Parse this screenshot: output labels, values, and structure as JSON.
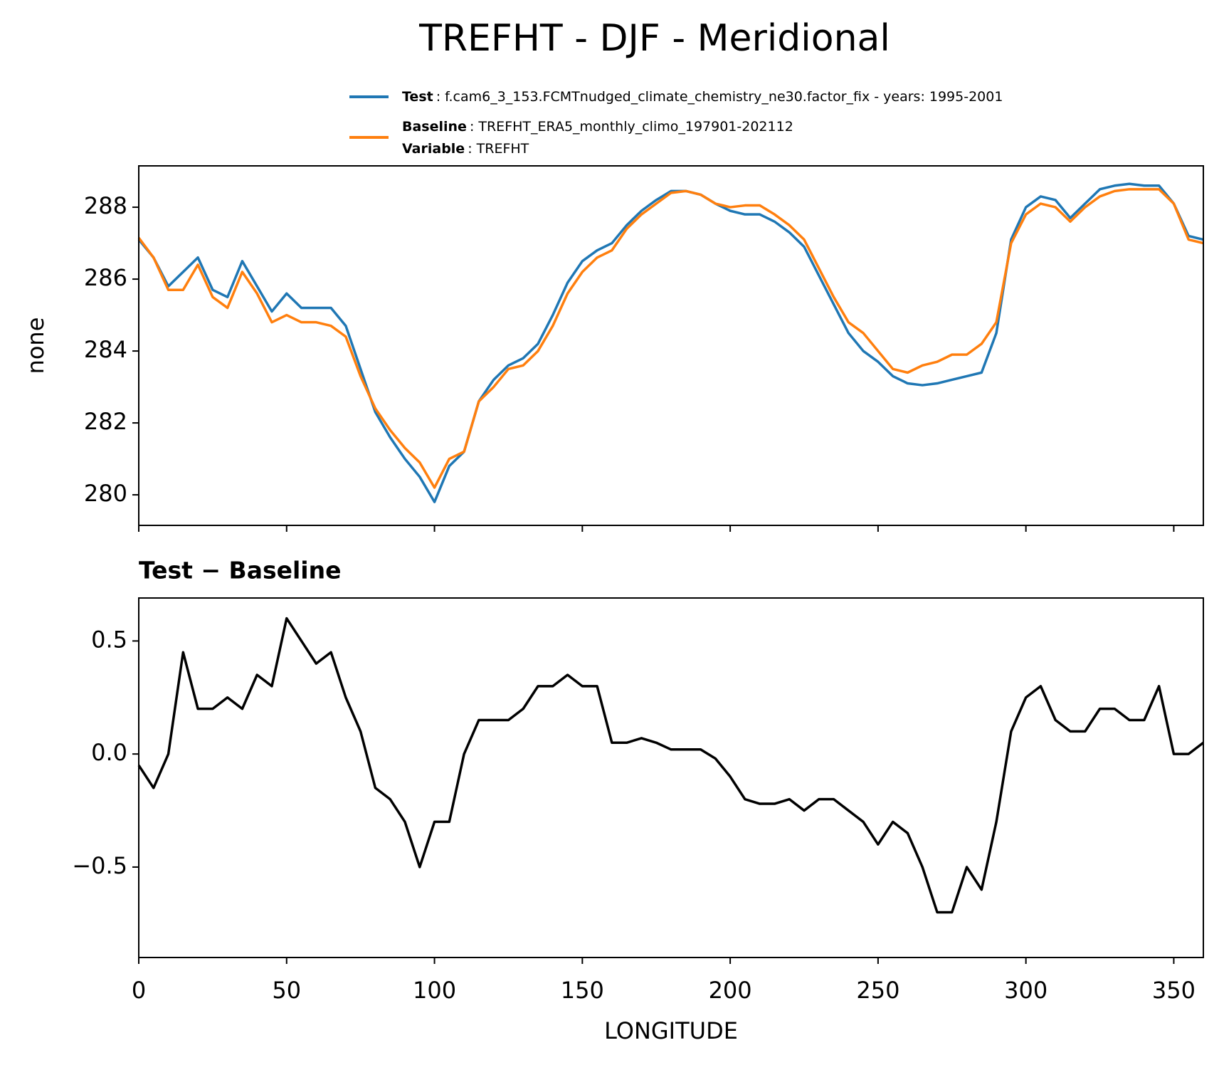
{
  "title": "TREFHT - DJF - Meridional",
  "chart_data": [
    {
      "type": "line",
      "ylabel": "none",
      "x": [
        0,
        5,
        10,
        15,
        20,
        25,
        30,
        35,
        40,
        45,
        50,
        55,
        60,
        65,
        70,
        75,
        80,
        85,
        90,
        95,
        100,
        105,
        110,
        115,
        120,
        125,
        130,
        135,
        140,
        145,
        150,
        155,
        160,
        165,
        170,
        175,
        180,
        185,
        190,
        195,
        200,
        205,
        210,
        215,
        220,
        225,
        230,
        235,
        240,
        245,
        250,
        255,
        260,
        265,
        270,
        275,
        280,
        285,
        290,
        295,
        300,
        305,
        310,
        315,
        320,
        325,
        330,
        335,
        340,
        345,
        350,
        355,
        360
      ],
      "series": [
        {
          "name": "Test",
          "description": ": f.cam6_3_153.FCMTnudged_climate_chemistry_ne30.factor_fix - years: 1995-2001",
          "color": "#1f77b4",
          "values": [
            287.1,
            286.6,
            285.8,
            286.2,
            286.6,
            285.7,
            285.5,
            286.5,
            285.8,
            285.1,
            285.6,
            285.2,
            285.2,
            285.2,
            284.7,
            283.5,
            282.3,
            281.6,
            281.0,
            280.5,
            279.8,
            280.8,
            281.2,
            282.6,
            283.2,
            283.6,
            283.8,
            284.2,
            285.0,
            285.9,
            286.5,
            286.8,
            287.0,
            287.5,
            287.9,
            288.2,
            288.45,
            288.45,
            288.35,
            288.1,
            287.9,
            287.8,
            287.8,
            287.6,
            287.3,
            286.9,
            286.1,
            285.3,
            284.5,
            284.0,
            283.7,
            283.3,
            283.1,
            283.05,
            283.1,
            283.2,
            283.3,
            283.4,
            284.5,
            287.1,
            288.0,
            288.3,
            288.2,
            287.7,
            288.1,
            288.5,
            288.6,
            288.65,
            288.6,
            288.6,
            288.1,
            287.2,
            287.1
          ]
        },
        {
          "name": "Baseline",
          "description": ": TREFHT_ERA5_monthly_climo_197901-202112",
          "color": "#ff7f0e",
          "values": [
            287.15,
            286.6,
            285.7,
            285.7,
            286.4,
            285.5,
            285.2,
            286.2,
            285.6,
            284.8,
            285.0,
            284.8,
            284.8,
            284.7,
            284.4,
            283.3,
            282.4,
            281.8,
            281.3,
            280.9,
            280.2,
            281.0,
            281.2,
            282.6,
            283.0,
            283.5,
            283.6,
            284.0,
            284.7,
            285.6,
            286.2,
            286.6,
            286.8,
            287.4,
            287.8,
            288.1,
            288.4,
            288.45,
            288.35,
            288.1,
            288.0,
            288.05,
            288.05,
            287.8,
            287.5,
            287.1,
            286.3,
            285.5,
            284.8,
            284.5,
            284.0,
            283.5,
            283.4,
            283.6,
            283.7,
            283.9,
            283.9,
            284.2,
            284.8,
            287.0,
            287.8,
            288.1,
            288.0,
            287.6,
            288.0,
            288.3,
            288.45,
            288.5,
            288.5,
            288.5,
            288.1,
            287.1,
            287.0
          ]
        }
      ],
      "variable": {
        "name": "Variable",
        "description": ": TREFHT"
      },
      "xlim": [
        0,
        360
      ],
      "ylim": [
        279.15,
        289.15
      ],
      "yticks": [
        280,
        282,
        284,
        286,
        288
      ]
    },
    {
      "type": "line",
      "title": "Test − Baseline",
      "xlabel": "LONGITUDE",
      "x": [
        0,
        5,
        10,
        15,
        20,
        25,
        30,
        35,
        40,
        45,
        50,
        55,
        60,
        65,
        70,
        75,
        80,
        85,
        90,
        95,
        100,
        105,
        110,
        115,
        120,
        125,
        130,
        135,
        140,
        145,
        150,
        155,
        160,
        165,
        170,
        175,
        180,
        185,
        190,
        195,
        200,
        205,
        210,
        215,
        220,
        225,
        230,
        235,
        240,
        245,
        250,
        255,
        260,
        265,
        270,
        275,
        280,
        285,
        290,
        295,
        300,
        305,
        310,
        315,
        320,
        325,
        330,
        335,
        340,
        345,
        350,
        355,
        360
      ],
      "series": [
        {
          "color": "#000000",
          "values": [
            -0.05,
            -0.15,
            0.0,
            0.45,
            0.2,
            0.2,
            0.25,
            0.2,
            0.35,
            0.3,
            0.6,
            0.5,
            0.4,
            0.45,
            0.25,
            0.1,
            -0.15,
            -0.2,
            -0.3,
            -0.5,
            -0.3,
            -0.3,
            0.0,
            0.15,
            0.15,
            0.15,
            0.2,
            0.3,
            0.3,
            0.35,
            0.3,
            0.3,
            0.05,
            0.05,
            0.07,
            0.05,
            0.02,
            0.02,
            0.02,
            -0.02,
            -0.1,
            -0.2,
            -0.22,
            -0.22,
            -0.2,
            -0.25,
            -0.2,
            -0.2,
            -0.25,
            -0.3,
            -0.4,
            -0.3,
            -0.35,
            -0.5,
            -0.7,
            -0.7,
            -0.5,
            -0.6,
            -0.3,
            0.1,
            0.25,
            0.3,
            0.15,
            0.1,
            0.1,
            0.2,
            0.2,
            0.15,
            0.15,
            0.3,
            0.0,
            0.0,
            0.05
          ]
        }
      ],
      "xlim": [
        0,
        360
      ],
      "ylim": [
        -0.9,
        0.69
      ],
      "xticks": [
        0,
        50,
        100,
        150,
        200,
        250,
        300,
        350
      ],
      "yticks": [
        {
          "value": -0.5,
          "label": "−0.5"
        },
        {
          "value": 0,
          "label": "0.0"
        },
        0.5
      ]
    }
  ]
}
